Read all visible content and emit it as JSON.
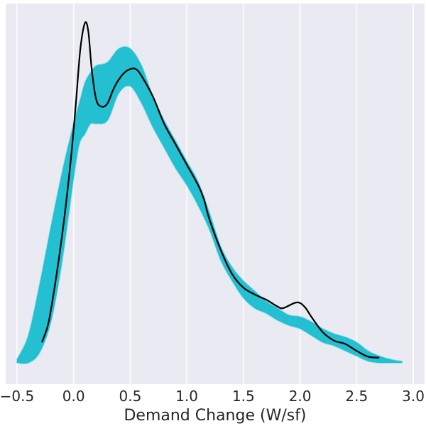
{
  "chart_data": {
    "type": "line",
    "title": "",
    "xlabel": "Demand Change (W/sf)",
    "ylabel": "",
    "xlim": [
      -0.6,
      3.1
    ],
    "ylim": [
      0,
      1
    ],
    "grid": true,
    "legend": "none",
    "x_ticks": [
      -0.5,
      0.0,
      0.5,
      1.0,
      1.5,
      2.0,
      2.5,
      3.0
    ],
    "x_tick_labels": [
      "−0.5",
      "0.0",
      "0.5",
      "1.0",
      "1.5",
      "2.0",
      "2.5",
      "3.0"
    ],
    "colors": {
      "background": "#eaeaf2",
      "grid": "#ffffff",
      "ensemble": "#17becf",
      "main_line": "#000000"
    },
    "series": [
      {
        "role": "ensemble-band",
        "x": [
          -0.5,
          -0.4,
          -0.3,
          -0.2,
          -0.1,
          0.0,
          0.05,
          0.1,
          0.15,
          0.2,
          0.3,
          0.4,
          0.5,
          0.6,
          0.7,
          0.8,
          0.9,
          1.0,
          1.1,
          1.2,
          1.3,
          1.4,
          1.5,
          1.6,
          1.7,
          1.8,
          1.9,
          2.0,
          2.1,
          2.2,
          2.3,
          2.4,
          2.5,
          2.6,
          2.7,
          2.8,
          2.9
        ],
        "upper": [
          0.01,
          0.08,
          0.23,
          0.4,
          0.56,
          0.7,
          0.76,
          0.82,
          0.85,
          0.87,
          0.88,
          0.92,
          0.92,
          0.87,
          0.78,
          0.71,
          0.65,
          0.59,
          0.53,
          0.44,
          0.34,
          0.28,
          0.24,
          0.21,
          0.18,
          0.16,
          0.14,
          0.135,
          0.12,
          0.1,
          0.085,
          0.075,
          0.06,
          0.035,
          0.02,
          0.01,
          0.004
        ],
        "lower": [
          0.0,
          0.0,
          0.03,
          0.12,
          0.3,
          0.54,
          0.64,
          0.67,
          0.7,
          0.7,
          0.71,
          0.79,
          0.81,
          0.76,
          0.69,
          0.63,
          0.57,
          0.52,
          0.46,
          0.39,
          0.3,
          0.24,
          0.19,
          0.16,
          0.145,
          0.125,
          0.11,
          0.1,
          0.08,
          0.06,
          0.05,
          0.035,
          0.02,
          0.005,
          0.0,
          0.0,
          0.0
        ]
      },
      {
        "role": "main-curve",
        "x": [
          -0.28,
          -0.22,
          -0.15,
          -0.08,
          -0.02,
          0.02,
          0.06,
          0.1,
          0.13,
          0.16,
          0.2,
          0.25,
          0.3,
          0.35,
          0.4,
          0.45,
          0.5,
          0.55,
          0.6,
          0.7,
          0.8,
          0.9,
          1.0,
          1.1,
          1.15,
          1.2,
          1.3,
          1.4,
          1.5,
          1.6,
          1.7,
          1.8,
          1.85,
          1.95,
          2.0,
          2.05,
          2.1,
          2.2,
          2.3,
          2.4,
          2.5,
          2.6,
          2.7
        ],
        "y": [
          0.06,
          0.12,
          0.26,
          0.43,
          0.61,
          0.76,
          0.92,
          0.995,
          0.97,
          0.86,
          0.77,
          0.75,
          0.76,
          0.8,
          0.83,
          0.85,
          0.86,
          0.86,
          0.84,
          0.78,
          0.7,
          0.64,
          0.58,
          0.52,
          0.48,
          0.42,
          0.33,
          0.26,
          0.22,
          0.2,
          0.185,
          0.165,
          0.16,
          0.175,
          0.175,
          0.16,
          0.135,
          0.09,
          0.065,
          0.055,
          0.035,
          0.018,
          0.015
        ]
      }
    ]
  }
}
